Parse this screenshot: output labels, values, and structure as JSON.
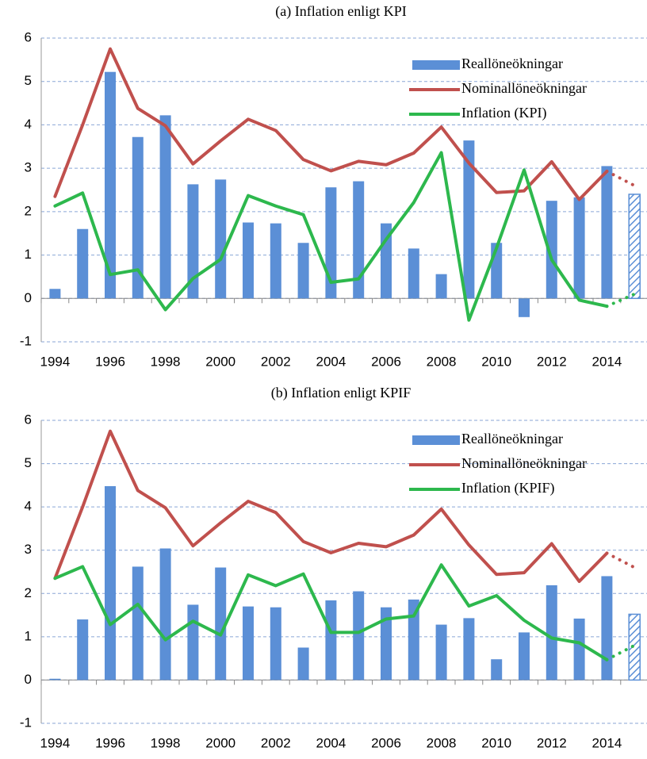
{
  "chart_data": [
    {
      "type": "combo",
      "title": "(a) Inflation enligt KPI",
      "categories": [
        "1994",
        null,
        "1996",
        null,
        "1998",
        null,
        "2000",
        null,
        "2002",
        null,
        "2004",
        null,
        "2006",
        null,
        "2008",
        null,
        "2010",
        null,
        "2012",
        null,
        "2014",
        null
      ],
      "series": [
        {
          "name": "Reallöneökningar",
          "type": "bar",
          "color": "#5b8fd6",
          "values": [
            0.22,
            1.6,
            5.22,
            3.72,
            4.22,
            2.63,
            2.74,
            1.75,
            1.73,
            1.28,
            2.56,
            2.7,
            1.73,
            1.15,
            0.56,
            3.64,
            1.28,
            -0.43,
            2.25,
            2.33,
            3.05,
            2.4
          ]
        },
        {
          "name": "Nominallöneökningar",
          "type": "line",
          "color": "#c0504d",
          "values": [
            2.35,
            4.0,
            5.75,
            4.38,
            3.98,
            3.1,
            3.63,
            4.13,
            3.87,
            3.2,
            2.94,
            3.16,
            3.08,
            3.35,
            3.95,
            3.12,
            2.44,
            2.48,
            3.15,
            2.28,
            2.93,
            2.6
          ]
        },
        {
          "name": "Inflation (KPI)",
          "type": "line",
          "color": "#2db84d",
          "values": [
            2.13,
            2.43,
            0.55,
            0.66,
            -0.26,
            0.46,
            0.9,
            2.37,
            2.13,
            1.93,
            0.37,
            0.45,
            1.36,
            2.21,
            3.36,
            -0.5,
            1.16,
            2.96,
            0.89,
            -0.04,
            -0.18,
            0.1
          ]
        }
      ],
      "ylim": [
        -1,
        6
      ],
      "yticks": [
        -1,
        0,
        1,
        2,
        3,
        4,
        5,
        6
      ],
      "grid": true,
      "legend": "upper right",
      "forecast_last": true
    },
    {
      "type": "combo",
      "title": "(b) Inflation enligt KPIF",
      "categories": [
        "1994",
        null,
        "1996",
        null,
        "1998",
        null,
        "2000",
        null,
        "2002",
        null,
        "2004",
        null,
        "2006",
        null,
        "2008",
        null,
        "2010",
        null,
        "2012",
        null,
        "2014",
        null
      ],
      "series": [
        {
          "name": "Reallöneökningar",
          "type": "bar",
          "color": "#5b8fd6",
          "values": [
            0.03,
            1.4,
            4.48,
            2.62,
            3.04,
            1.74,
            2.6,
            1.7,
            1.68,
            0.75,
            1.84,
            2.05,
            1.68,
            1.86,
            1.28,
            1.43,
            0.48,
            1.1,
            2.19,
            1.42,
            2.4,
            1.52
          ]
        },
        {
          "name": "Nominallöneökningar",
          "type": "line",
          "color": "#c0504d",
          "values": [
            2.35,
            4.0,
            5.75,
            4.38,
            3.98,
            3.1,
            3.63,
            4.13,
            3.87,
            3.2,
            2.94,
            3.16,
            3.08,
            3.35,
            3.95,
            3.12,
            2.44,
            2.48,
            3.15,
            2.28,
            2.93,
            2.6
          ]
        },
        {
          "name": "Inflation (KPIF)",
          "type": "line",
          "color": "#2db84d",
          "values": [
            2.35,
            2.62,
            1.28,
            1.75,
            0.93,
            1.36,
            1.04,
            2.43,
            2.18,
            2.45,
            1.1,
            1.1,
            1.41,
            1.48,
            2.66,
            1.71,
            1.95,
            1.38,
            0.97,
            0.86,
            0.47,
            0.8
          ]
        }
      ],
      "ylim": [
        -1,
        6
      ],
      "yticks": [
        -1,
        0,
        1,
        2,
        3,
        4,
        5,
        6
      ],
      "grid": true,
      "legend": "upper right",
      "forecast_last": true
    }
  ]
}
